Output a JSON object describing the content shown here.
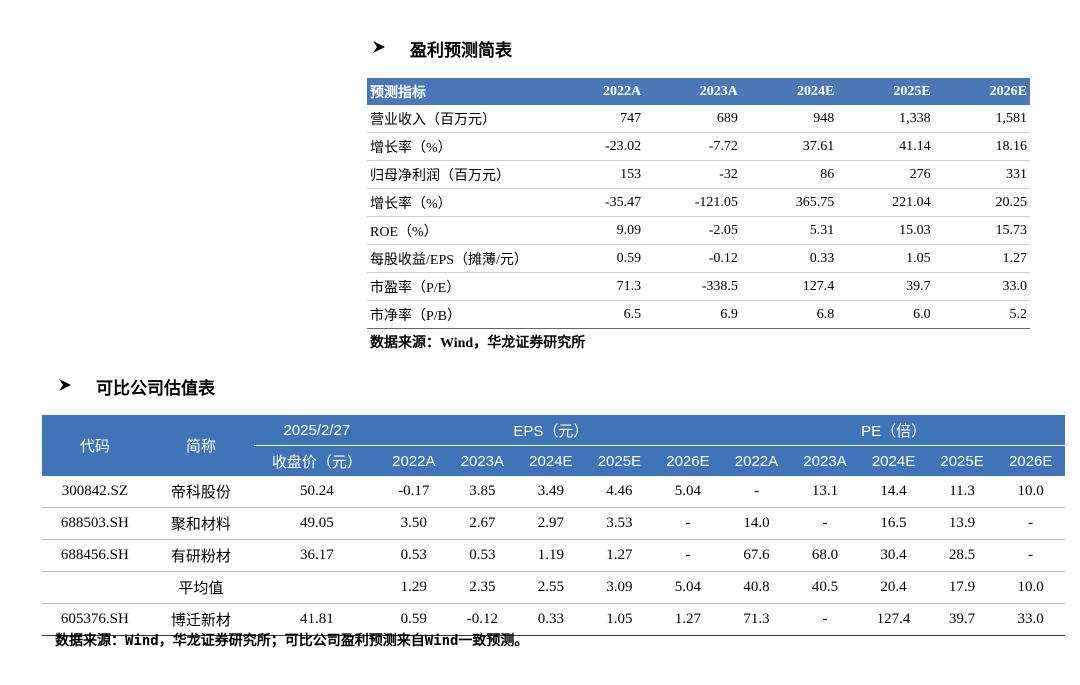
{
  "section1": {
    "title": "盈利预测简表",
    "table": {
      "header": [
        "预测指标",
        "2022A",
        "2023A",
        "2024E",
        "2025E",
        "2026E"
      ],
      "rows": [
        [
          "营业收入（百万元）",
          "747",
          "689",
          "948",
          "1,338",
          "1,581"
        ],
        [
          "增长率（%）",
          "-23.02",
          "-7.72",
          "37.61",
          "41.14",
          "18.16"
        ],
        [
          "归母净利润（百万元）",
          "153",
          "-32",
          "86",
          "276",
          "331"
        ],
        [
          "增长率（%）",
          "-35.47",
          "-121.05",
          "365.75",
          "221.04",
          "20.25"
        ],
        [
          "ROE（%）",
          "9.09",
          "-2.05",
          "5.31",
          "15.03",
          "15.73"
        ],
        [
          "每股收益/EPS（摊薄/元）",
          "0.59",
          "-0.12",
          "0.33",
          "1.05",
          "1.27"
        ],
        [
          "市盈率（P/E）",
          "71.3",
          "-338.5",
          "127.4",
          "39.7",
          "33.0"
        ],
        [
          "市净率（P/B）",
          "6.5",
          "6.9",
          "6.8",
          "6.0",
          "5.2"
        ]
      ]
    },
    "source": "数据来源：Wind，华龙证券研究所"
  },
  "section2": {
    "title": "可比公司估值表",
    "table": {
      "header_top": [
        "代码",
        "简称",
        "2025/2/27",
        "EPS（元）",
        "PE（倍）"
      ],
      "header_bottom": [
        "收盘价（元）",
        "2022A",
        "2023A",
        "2024E",
        "2025E",
        "2026E",
        "2022A",
        "2023A",
        "2024E",
        "2025E",
        "2026E"
      ],
      "rows": [
        [
          "300842.SZ",
          "帝科股份",
          "50.24",
          "-0.17",
          "3.85",
          "3.49",
          "4.46",
          "5.04",
          "-",
          "13.1",
          "14.4",
          "11.3",
          "10.0"
        ],
        [
          "688503.SH",
          "聚和材料",
          "49.05",
          "3.50",
          "2.67",
          "2.97",
          "3.53",
          "-",
          "14.0",
          "-",
          "16.5",
          "13.9",
          "-"
        ],
        [
          "688456.SH",
          "有研粉材",
          "36.17",
          "0.53",
          "0.53",
          "1.19",
          "1.27",
          "-",
          "67.6",
          "68.0",
          "30.4",
          "28.5",
          "-"
        ],
        [
          null,
          "平均值",
          null,
          "1.29",
          "2.35",
          "2.55",
          "3.09",
          "5.04",
          "40.8",
          "40.5",
          "20.4",
          "17.9",
          "10.0"
        ],
        [
          "605376.SH",
          "博迁新材",
          "41.81",
          "0.59",
          "-0.12",
          "0.33",
          "1.05",
          "1.27",
          "71.3",
          "-",
          "127.4",
          "39.7",
          "33.0"
        ]
      ]
    },
    "source": "数据来源：Wind，华龙证券研究所；可比公司盈利预测来自Wind一致预测。"
  }
}
